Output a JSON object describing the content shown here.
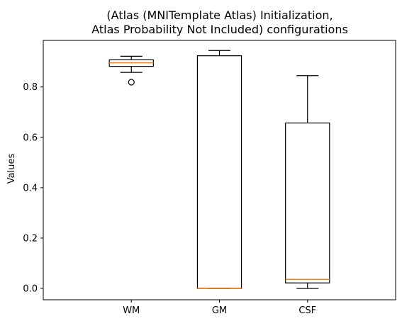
{
  "chart_data": {
    "type": "box",
    "title_lines": [
      "(Atlas (MNITemplate Atlas) Initialization,",
      "Atlas Probability Not Included) configurations"
    ],
    "xlabel": "",
    "ylabel": "Values",
    "ylim": [
      -0.045,
      0.985
    ],
    "yticks": [
      0.0,
      0.2,
      0.4,
      0.6,
      0.8
    ],
    "ytick_labels": [
      "0.0",
      "0.2",
      "0.4",
      "0.6",
      "0.8"
    ],
    "categories": [
      "WM",
      "GM",
      "CSF"
    ],
    "boxes": [
      {
        "label": "WM",
        "whisker_low": 0.858,
        "q1": 0.882,
        "median": 0.896,
        "q3": 0.908,
        "whisker_high": 0.922,
        "outliers": [
          0.819
        ]
      },
      {
        "label": "GM",
        "whisker_low": 0.0,
        "q1": 0.0,
        "median": 0.001,
        "q3": 0.924,
        "whisker_high": 0.945,
        "outliers": []
      },
      {
        "label": "CSF",
        "whisker_low": 0.0,
        "q1": 0.022,
        "median": 0.036,
        "q3": 0.657,
        "whisker_high": 0.845,
        "outliers": []
      }
    ],
    "grid": false,
    "colors": {
      "box": "#000000",
      "median": "#ff7f0e",
      "outlier_edge": "#000000"
    }
  }
}
